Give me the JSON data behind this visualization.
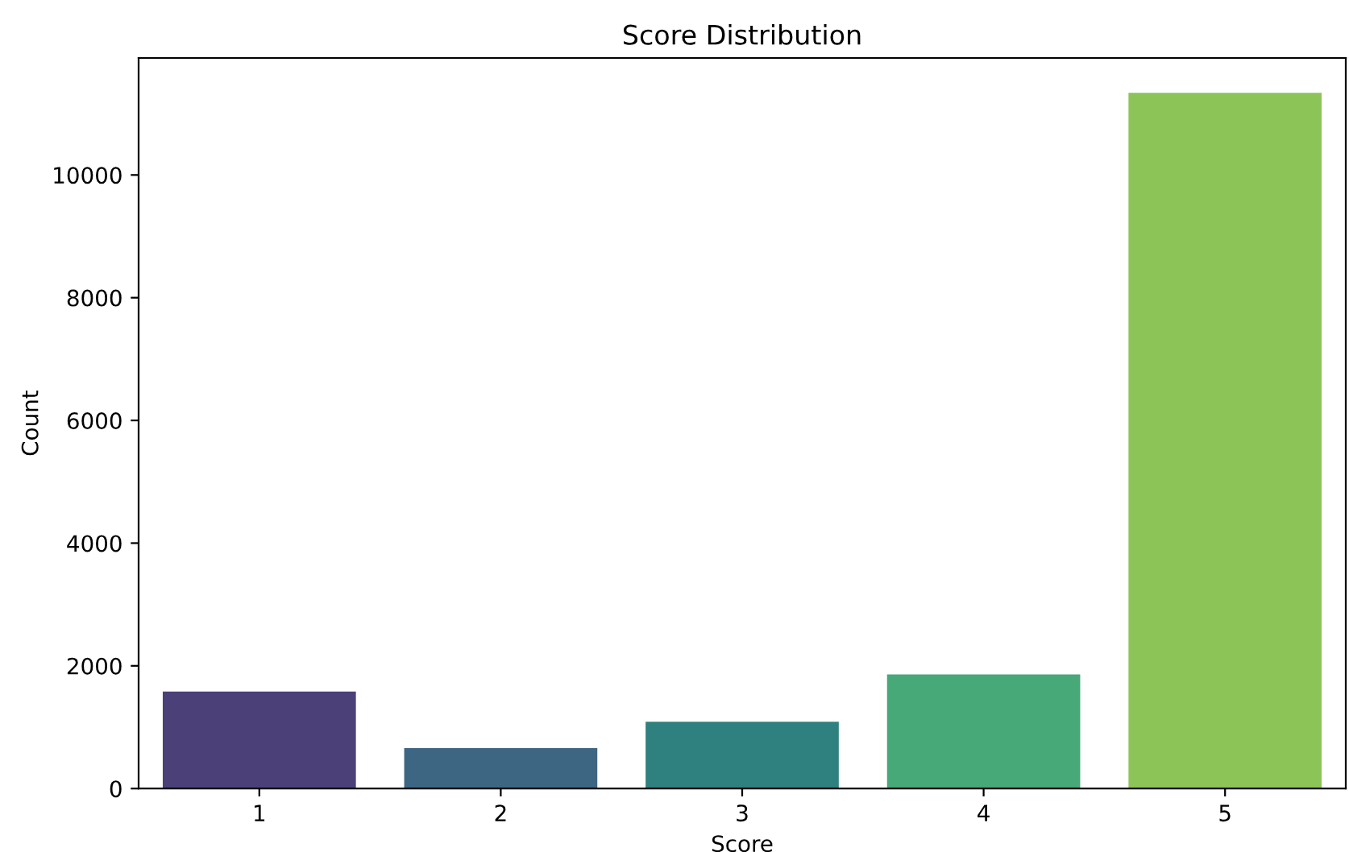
{
  "chart_data": {
    "type": "bar",
    "title": "Score Distribution",
    "xlabel": "Score",
    "ylabel": "Count",
    "categories": [
      "1",
      "2",
      "3",
      "4",
      "5"
    ],
    "values": [
      1580,
      660,
      1090,
      1860,
      11340
    ],
    "colors": [
      "#4b4078",
      "#3d6682",
      "#2e817e",
      "#47a878",
      "#8dc457"
    ],
    "ylim": [
      0,
      11907
    ],
    "yticks": [
      0,
      2000,
      4000,
      6000,
      8000,
      10000
    ],
    "grid": false,
    "legend": false
  }
}
